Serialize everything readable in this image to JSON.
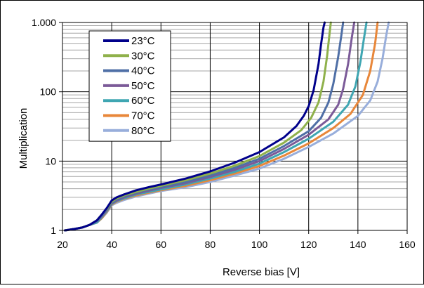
{
  "chart_data": {
    "type": "line",
    "title": "",
    "xlabel": "Reverse bias [V]",
    "ylabel": "Multiplication",
    "xlim": [
      20,
      160
    ],
    "ylim": [
      1,
      1000
    ],
    "yscale": "log",
    "grid": true,
    "legend_position": "top-left",
    "x_ticks": [
      20,
      40,
      60,
      80,
      100,
      120,
      140,
      160
    ],
    "x_tick_labels": [
      "20",
      "40",
      "60",
      "80",
      "100",
      "120",
      "140",
      "160"
    ],
    "y_ticks": [
      1,
      10,
      100,
      1000
    ],
    "y_tick_labels": [
      "1",
      "10",
      "100",
      "1.000"
    ],
    "series": [
      {
        "name": "23°C",
        "color": "#00008b",
        "x": [
          21,
          25,
          28,
          31,
          34,
          36,
          38,
          40,
          42,
          45,
          50,
          55,
          60,
          70,
          80,
          90,
          100,
          110,
          115,
          118,
          120,
          122,
          124,
          125,
          126,
          126.5
        ],
        "y": [
          1,
          1.05,
          1.1,
          1.2,
          1.4,
          1.7,
          2.1,
          2.7,
          3,
          3.3,
          3.8,
          4.2,
          4.6,
          5.6,
          7.1,
          9.5,
          13.5,
          22,
          32,
          45,
          62,
          105,
          250,
          480,
          850,
          1000
        ]
      },
      {
        "name": "30°C",
        "color": "#8fb14b",
        "x": [
          21,
          25,
          28,
          31,
          34,
          36,
          38,
          40,
          42,
          45,
          50,
          55,
          60,
          70,
          80,
          90,
          100,
          110,
          117,
          121,
          124,
          126,
          127.5,
          128.5,
          129
        ],
        "y": [
          1,
          1.05,
          1.1,
          1.2,
          1.4,
          1.7,
          2.05,
          2.6,
          2.9,
          3.2,
          3.6,
          4,
          4.4,
          5.3,
          6.6,
          8.6,
          11.8,
          18.5,
          28,
          42,
          70,
          140,
          330,
          700,
          1000
        ]
      },
      {
        "name": "40°C",
        "color": "#4f6fa6",
        "x": [
          21,
          25,
          28,
          31,
          34,
          36,
          38,
          40,
          42,
          45,
          50,
          55,
          60,
          70,
          80,
          90,
          100,
          110,
          120,
          125,
          128,
          130,
          132,
          133.5,
          134
        ],
        "y": [
          1,
          1.05,
          1.1,
          1.2,
          1.35,
          1.65,
          2,
          2.5,
          2.8,
          3.1,
          3.5,
          3.9,
          4.2,
          5,
          6.2,
          8,
          10.8,
          16.5,
          27,
          42,
          70,
          130,
          320,
          750,
          1000
        ]
      },
      {
        "name": "50°C",
        "color": "#7b5a98",
        "x": [
          21,
          25,
          28,
          31,
          34,
          36,
          38,
          40,
          42,
          45,
          50,
          55,
          60,
          70,
          80,
          90,
          100,
          110,
          120,
          128,
          132,
          134,
          136,
          137.5,
          138.5
        ],
        "y": [
          1,
          1.05,
          1.1,
          1.2,
          1.35,
          1.6,
          1.95,
          2.45,
          2.7,
          3,
          3.4,
          3.75,
          4.1,
          4.8,
          5.9,
          7.5,
          10,
          15,
          24,
          40,
          65,
          110,
          250,
          600,
          1000
        ]
      },
      {
        "name": "60°C",
        "color": "#3fa6b2",
        "x": [
          21,
          25,
          28,
          31,
          34,
          36,
          38,
          40,
          42,
          45,
          50,
          55,
          60,
          70,
          80,
          90,
          100,
          110,
          120,
          130,
          136,
          139,
          141,
          142.5,
          143.5
        ],
        "y": [
          1,
          1.05,
          1.1,
          1.2,
          1.3,
          1.55,
          1.9,
          2.4,
          2.65,
          2.9,
          3.3,
          3.6,
          3.9,
          4.6,
          5.6,
          7,
          9.2,
          13.5,
          21,
          37,
          65,
          120,
          270,
          600,
          1000
        ]
      },
      {
        "name": "70°C",
        "color": "#e8873a",
        "x": [
          21,
          25,
          28,
          31,
          34,
          36,
          38,
          40,
          42,
          45,
          50,
          55,
          60,
          70,
          80,
          90,
          100,
          110,
          120,
          130,
          137,
          142,
          145,
          147,
          148
        ],
        "y": [
          1,
          1.05,
          1.1,
          1.2,
          1.3,
          1.5,
          1.85,
          2.35,
          2.6,
          2.85,
          3.2,
          3.5,
          3.8,
          4.4,
          5.3,
          6.6,
          8.5,
          12,
          18,
          30,
          48,
          90,
          200,
          500,
          1000
        ]
      },
      {
        "name": "80°C",
        "color": "#98aedb",
        "x": [
          21,
          25,
          28,
          31,
          34,
          36,
          38,
          40,
          42,
          45,
          50,
          55,
          60,
          70,
          80,
          90,
          100,
          110,
          120,
          130,
          140,
          145,
          148,
          150,
          151.5,
          152.5
        ],
        "y": [
          1,
          1.05,
          1.1,
          1.2,
          1.3,
          1.5,
          1.8,
          2.3,
          2.5,
          2.75,
          3.1,
          3.4,
          3.7,
          4.2,
          5,
          6.2,
          7.8,
          10.8,
          16,
          25,
          45,
          75,
          140,
          300,
          650,
          1000
        ]
      }
    ]
  }
}
